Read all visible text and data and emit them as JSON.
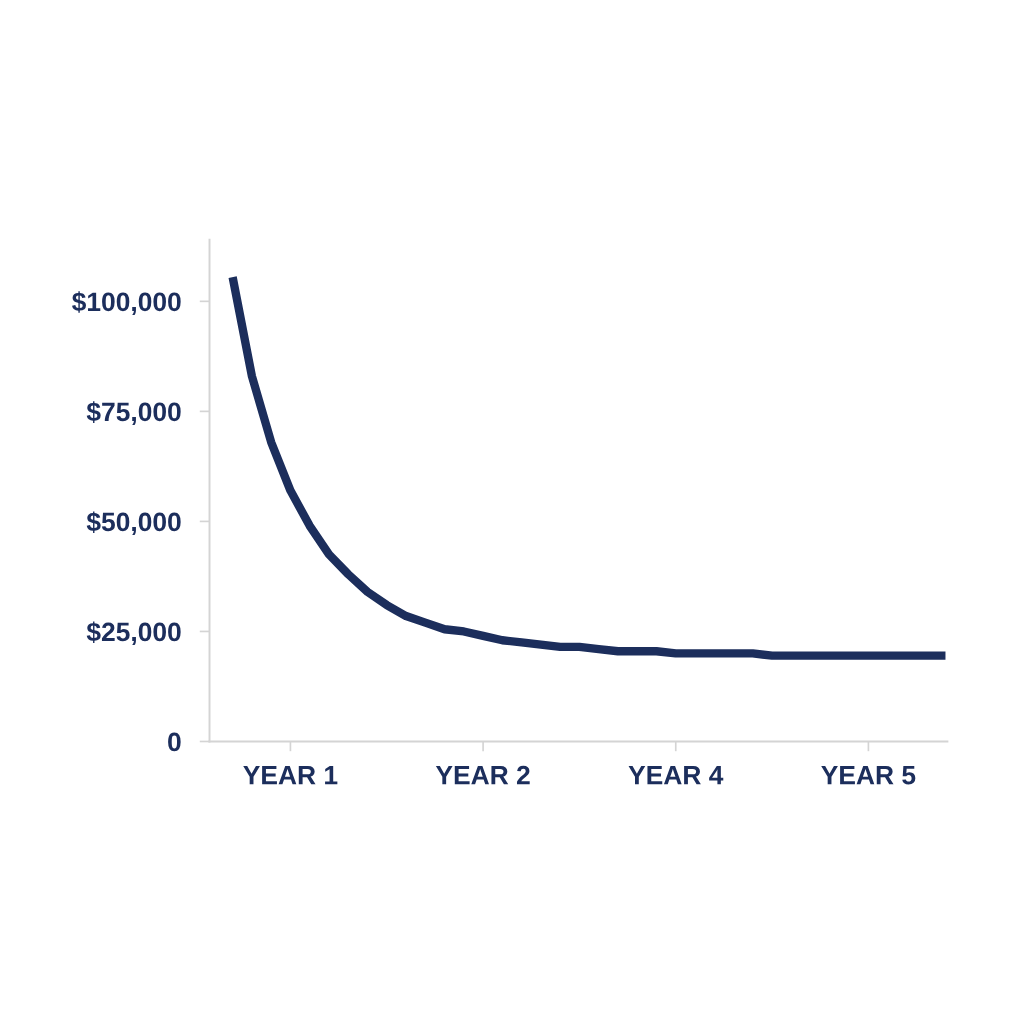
{
  "chart_data": {
    "type": "line",
    "categories": [
      null,
      null,
      null,
      "YEAR 1",
      null,
      null,
      null,
      null,
      null,
      null,
      null,
      null,
      null,
      "YEAR 2",
      null,
      null,
      null,
      null,
      null,
      null,
      null,
      null,
      null,
      "YEAR 4",
      null,
      null,
      null,
      null,
      null,
      null,
      null,
      null,
      null,
      "YEAR 5",
      null,
      null,
      null,
      null
    ],
    "series": [
      {
        "color": "#1c2e5c",
        "values": [
          105500,
          83000,
          68000,
          57000,
          49000,
          42500,
          38000,
          34000,
          31000,
          28500,
          27000,
          25500,
          25000,
          24000,
          23000,
          22500,
          22000,
          21500,
          21500,
          21000,
          20500,
          20500,
          20500,
          20000,
          20000,
          20000,
          20000,
          20000,
          19500,
          19500,
          19500,
          19500,
          19500,
          19500,
          19500,
          19500,
          19500,
          19500
        ]
      }
    ],
    "ylim": [
      0,
      114000
    ],
    "yticks": [
      0,
      {
        "value": 25000,
        "label": "$25,000"
      },
      {
        "value": 50000,
        "label": "$50,000"
      },
      {
        "value": 75000,
        "label": "$75,000"
      },
      {
        "value": 100000,
        "label": "$100,000"
      }
    ],
    "grid": false,
    "marker": "none",
    "line_style": "solid"
  }
}
